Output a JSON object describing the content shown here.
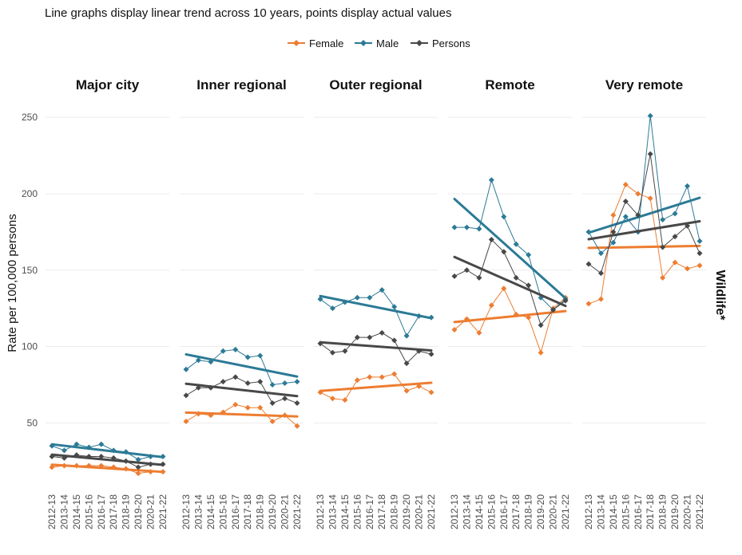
{
  "chart_data": {
    "type": "line",
    "subtitle": "Line graphs display linear trend across 10 years, points display actual values",
    "ylabel": "Rate per 100,000 persons",
    "row_strip": "Wildlife*",
    "ylim": [
      10,
      260
    ],
    "yticks": [
      50,
      100,
      150,
      200,
      250
    ],
    "x": [
      "2012-13",
      "2013-14",
      "2014-15",
      "2015-16",
      "2016-17",
      "2017-18",
      "2018-19",
      "2019-20",
      "2020-21",
      "2021-22"
    ],
    "legend": {
      "position": "top",
      "items": [
        {
          "name": "Female",
          "color": "#ED7D31"
        },
        {
          "name": "Male",
          "color": "#2C7A96"
        },
        {
          "name": "Persons",
          "color": "#484848"
        }
      ]
    },
    "facets": [
      {
        "name": "Major city",
        "series": [
          {
            "name": "Female",
            "values": [
              21,
              22,
              22,
              22,
              22,
              21,
              20,
              17,
              18,
              18
            ]
          },
          {
            "name": "Male",
            "values": [
              35,
              32,
              36,
              34,
              36,
              32,
              31,
              26,
              28,
              28
            ]
          },
          {
            "name": "Persons",
            "values": [
              28,
              27,
              29,
              28,
              28,
              27,
              25,
              21,
              23,
              23
            ]
          }
        ]
      },
      {
        "name": "Inner regional",
        "series": [
          {
            "name": "Female",
            "values": [
              51,
              56,
              55,
              57,
              62,
              60,
              60,
              51,
              55,
              48
            ]
          },
          {
            "name": "Male",
            "values": [
              85,
              91,
              90,
              97,
              98,
              93,
              94,
              75,
              76,
              77
            ]
          },
          {
            "name": "Persons",
            "values": [
              68,
              73,
              73,
              77,
              80,
              76,
              77,
              63,
              66,
              63
            ]
          }
        ]
      },
      {
        "name": "Outer regional",
        "series": [
          {
            "name": "Female",
            "values": [
              70,
              66,
              65,
              78,
              80,
              80,
              82,
              71,
              74,
              70
            ]
          },
          {
            "name": "Male",
            "values": [
              131,
              125,
              129,
              132,
              132,
              137,
              126,
              107,
              120,
              119
            ]
          },
          {
            "name": "Persons",
            "values": [
              102,
              96,
              97,
              106,
              106,
              109,
              104,
              89,
              97,
              95
            ]
          }
        ]
      },
      {
        "name": "Remote",
        "series": [
          {
            "name": "Female",
            "values": [
              111,
              118,
              109,
              127,
              138,
              121,
              119,
              96,
              125,
              132
            ]
          },
          {
            "name": "Male",
            "values": [
              178,
              178,
              177,
              209,
              185,
              167,
              160,
              132,
              124,
              131
            ]
          },
          {
            "name": "Persons",
            "values": [
              146,
              150,
              145,
              170,
              162,
              145,
              140,
              114,
              124,
              130
            ]
          }
        ]
      },
      {
        "name": "Very remote",
        "series": [
          {
            "name": "Female",
            "values": [
              128,
              131,
              186,
              206,
              200,
              197,
              145,
              155,
              151,
              153
            ]
          },
          {
            "name": "Male",
            "values": [
              175,
              161,
              168,
              185,
              175,
              251,
              183,
              187,
              205,
              169
            ]
          },
          {
            "name": "Persons",
            "values": [
              154,
              148,
              175,
              195,
              186,
              226,
              165,
              172,
              179,
              161
            ]
          }
        ]
      }
    ]
  }
}
